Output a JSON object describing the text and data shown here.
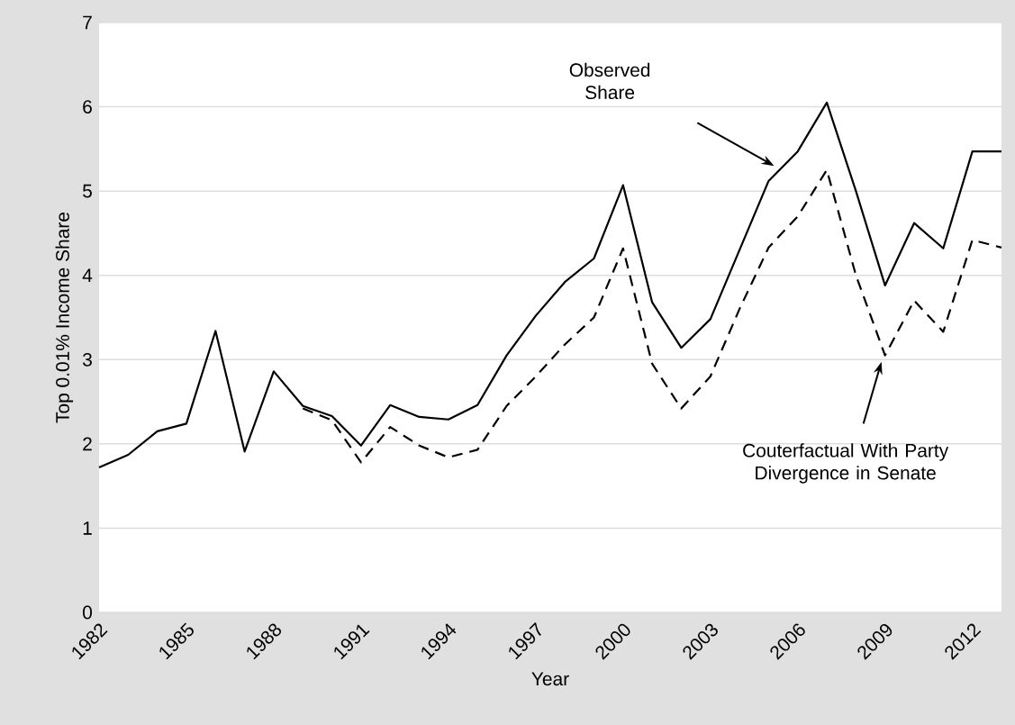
{
  "chart_data": {
    "type": "line",
    "xlabel": "Year",
    "ylabel": "Top 0.01% Income Share",
    "x": [
      1982,
      1983,
      1984,
      1985,
      1986,
      1987,
      1988,
      1989,
      1990,
      1991,
      1992,
      1993,
      1994,
      1995,
      1996,
      1997,
      1998,
      1999,
      2000,
      2001,
      2002,
      2003,
      2004,
      2005,
      2006,
      2007,
      2008,
      2009,
      2010,
      2011,
      2012,
      2013
    ],
    "series": [
      {
        "color": "#000000",
        "line_style": "solid",
        "values": [
          1.72,
          1.87,
          2.15,
          2.24,
          3.34,
          1.91,
          2.86,
          2.45,
          2.33,
          1.98,
          2.46,
          2.32,
          2.29,
          2.46,
          3.05,
          3.52,
          3.92,
          4.2,
          5.07,
          3.68,
          3.14,
          3.48,
          4.3,
          5.12,
          5.47,
          6.05,
          5.0,
          3.88,
          4.62,
          4.32,
          5.47,
          5.47
        ]
      },
      {
        "color": "#000000",
        "line_style": "dashed",
        "values": [
          null,
          null,
          null,
          null,
          null,
          null,
          null,
          2.42,
          2.28,
          1.78,
          2.2,
          1.98,
          1.84,
          1.93,
          2.45,
          2.8,
          3.18,
          3.5,
          4.32,
          2.95,
          2.42,
          2.8,
          3.6,
          4.33,
          4.7,
          5.25,
          4.0,
          3.05,
          3.7,
          3.33,
          4.42,
          4.33
        ]
      }
    ],
    "xlim": [
      1982,
      2013
    ],
    "xticks": [
      1982,
      1985,
      1988,
      1991,
      1994,
      1997,
      2000,
      2003,
      2006,
      2009,
      2012
    ],
    "ylim": [
      0,
      7
    ],
    "yticks": [
      0,
      1,
      2,
      3,
      4,
      5,
      6,
      7
    ],
    "grid": "y",
    "marker": "none",
    "annotations": [
      "Observed Share",
      "Couterfactual With Party Divergence in Senate"
    ]
  }
}
